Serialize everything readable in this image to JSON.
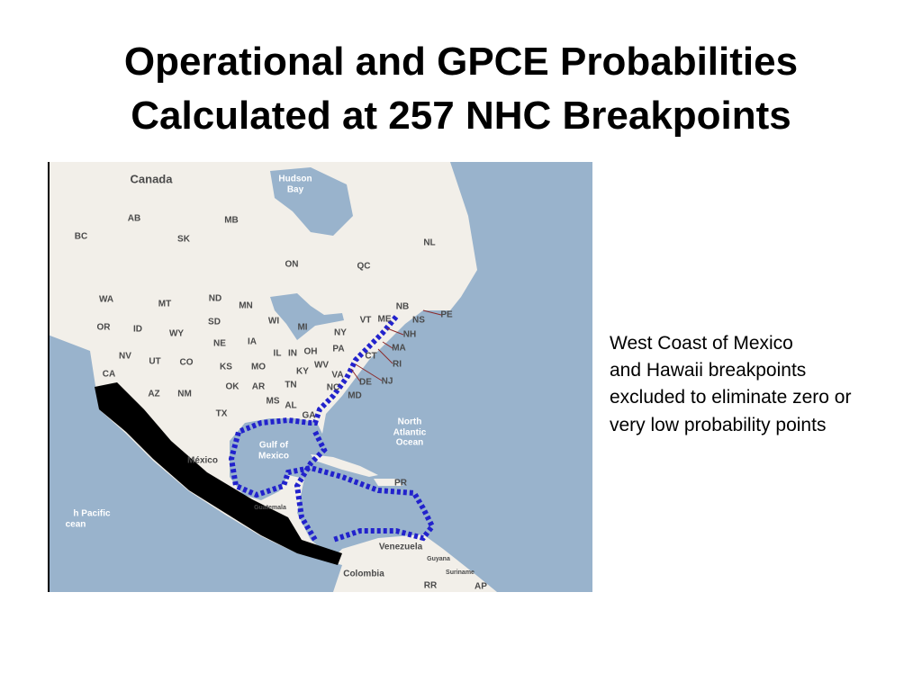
{
  "title": {
    "lines": [
      "Operational and GPCE Probabilities",
      "Calculated at 257 NHC Breakpoints"
    ]
  },
  "note": {
    "lines": [
      "West Coast of Mexico",
      "and Hawaii breakpoints",
      "excluded to eliminate zero or",
      "very low probability points"
    ]
  },
  "map": {
    "labels": [
      "Canada",
      "Hudson",
      "Bay",
      "AB",
      "BC",
      "SK",
      "MB",
      "ON",
      "QC",
      "NL",
      "WA",
      "MT",
      "ND",
      "MN",
      "OR",
      "ID",
      "WY",
      "SD",
      "WI",
      "MI",
      "NY",
      "VT",
      "ME",
      "NB",
      "NS",
      "PE",
      "NH",
      "NV",
      "UT",
      "CO",
      "NE",
      "IA",
      "IL",
      "IN",
      "OH",
      "PA",
      "MA",
      "CT",
      "RI",
      "CA",
      "KS",
      "MO",
      "KY",
      "WV",
      "VA",
      "NJ",
      "DE",
      "MD",
      "AZ",
      "NM",
      "OK",
      "AR",
      "TN",
      "NC",
      "MS",
      "AL",
      "GA",
      "TX",
      "North",
      "Atlantic",
      "Ocean",
      "Gulf of",
      "Mexico",
      "México",
      "PR",
      "h Pacific",
      "cean",
      "Guatemala",
      "Venezuela",
      "Colombia",
      "Guyana",
      "Suriname",
      "RR",
      "AP"
    ]
  }
}
